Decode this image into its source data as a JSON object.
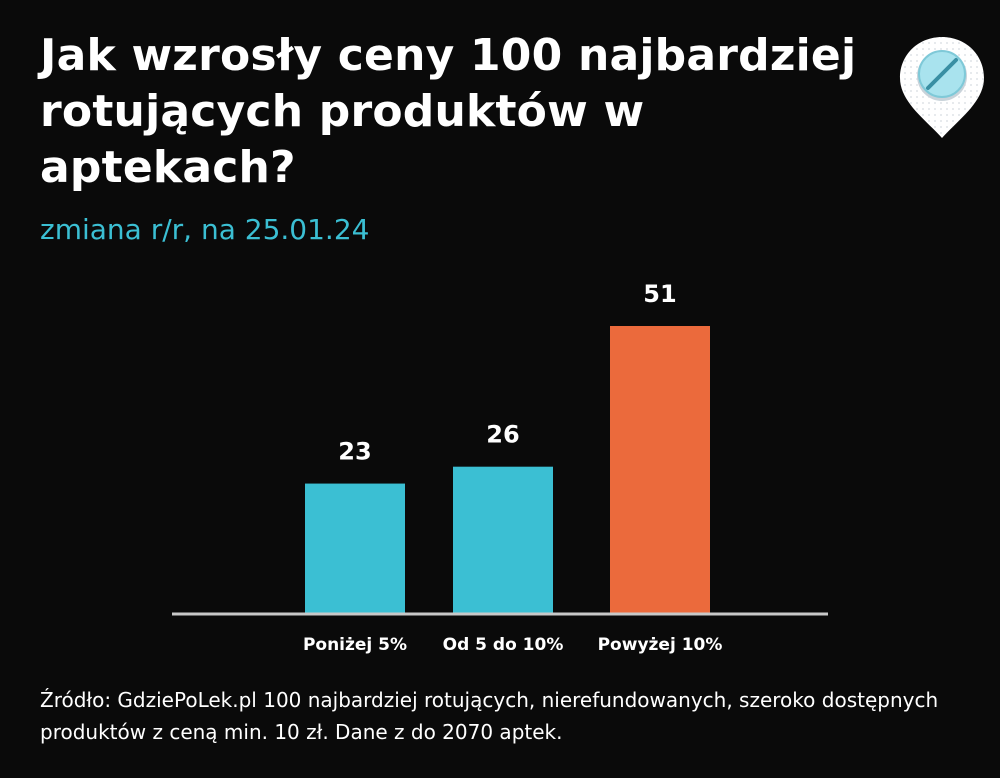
{
  "header": {
    "title": "Jak wzrosły ceny 100 najbardziej rotujących produktów w aptekach?",
    "subtitle": "zmiana r/r, na 25.01.24"
  },
  "logo": {
    "icon": "pill-pin-icon"
  },
  "source": "Źródło: GdziePoLek.pl 100 najbardziej rotujących, nierefundowanych, szeroko dostępnych produktów z ceną min. 10 zł. Dane z do 2070 aptek.",
  "chart_data": {
    "type": "bar",
    "categories": [
      "Poniżej 5%",
      "Od 5 do 10%",
      "Powyżej 10%"
    ],
    "values": [
      23,
      26,
      51
    ],
    "colors": [
      "#3bbfd3",
      "#3bbfd3",
      "#eb6a3c"
    ],
    "ylim": [
      0,
      51
    ],
    "grid": false,
    "legend": "none",
    "data_labels": true
  }
}
